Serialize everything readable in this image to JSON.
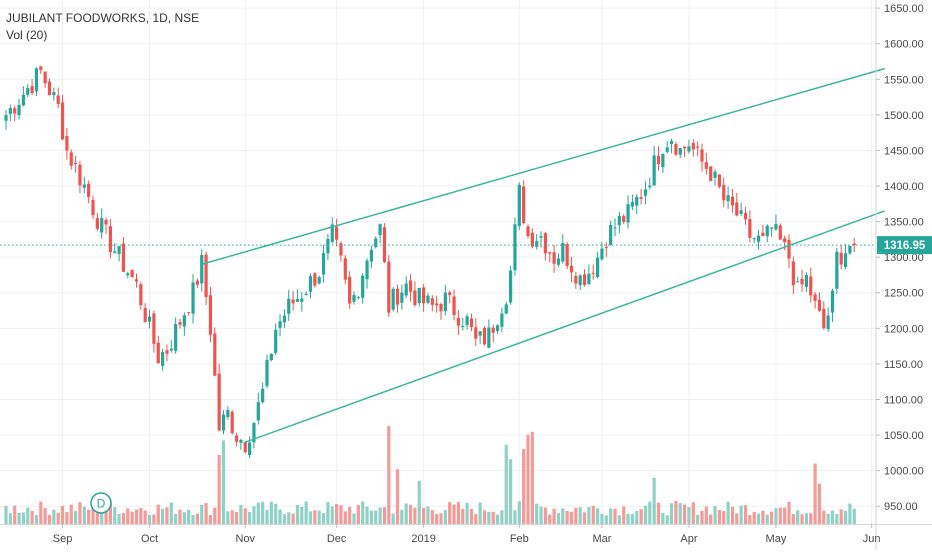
{
  "header": {
    "title": "JUBILANT FOODWORKS, 1D, NSE",
    "volume_label": "Vol (20)"
  },
  "price_label": "1316.95",
  "dividend_marker": "D",
  "colors": {
    "up": "#26a69a",
    "down": "#ef5350",
    "up_volume": "#8fd0c7",
    "down_volume": "#f49a98",
    "channel": "#3cb59f",
    "last_price_line": "#26a69a",
    "grid": "#eef0f3",
    "axis_text": "#4a4a4a"
  },
  "chart_data": {
    "type": "candlestick",
    "title": "JUBILANT FOODWORKS, 1D, NSE",
    "y_axis": {
      "min": 925,
      "max": 1660,
      "ticks": [
        "950.00",
        "1000.00",
        "1050.00",
        "1100.00",
        "1150.00",
        "1200.00",
        "1250.00",
        "1300.00",
        "1350.00",
        "1400.00",
        "1450.00",
        "1500.00",
        "1550.00",
        "1600.00",
        "1650.00"
      ]
    },
    "x_axis": {
      "ticks": [
        {
          "label": "Sep",
          "index": 13
        },
        {
          "label": "Oct",
          "index": 33
        },
        {
          "label": "Nov",
          "index": 55
        },
        {
          "label": "Dec",
          "index": 76
        },
        {
          "label": "2019",
          "index": 96
        },
        {
          "label": "Feb",
          "index": 118
        },
        {
          "label": "Mar",
          "index": 137
        },
        {
          "label": "Apr",
          "index": 157
        },
        {
          "label": "May",
          "index": 177
        },
        {
          "label": "Jun",
          "index": 199
        }
      ]
    },
    "last_price": 1316.95,
    "anchors": [
      [
        0,
        1500
      ],
      [
        4,
        1530
      ],
      [
        8,
        1560
      ],
      [
        12,
        1510
      ],
      [
        14,
        1450
      ],
      [
        18,
        1400
      ],
      [
        22,
        1340
      ],
      [
        26,
        1300
      ],
      [
        30,
        1260
      ],
      [
        33,
        1200
      ],
      [
        35,
        1160
      ],
      [
        37,
        1170
      ],
      [
        40,
        1210
      ],
      [
        43,
        1250
      ],
      [
        45,
        1290
      ],
      [
        47,
        1200
      ],
      [
        49,
        1060
      ],
      [
        51,
        1080
      ],
      [
        53,
        1050
      ],
      [
        55,
        1040
      ],
      [
        57,
        1070
      ],
      [
        59,
        1110
      ],
      [
        62,
        1200
      ],
      [
        65,
        1230
      ],
      [
        68,
        1250
      ],
      [
        72,
        1280
      ],
      [
        75,
        1330
      ],
      [
        77,
        1290
      ],
      [
        79,
        1230
      ],
      [
        81,
        1260
      ],
      [
        84,
        1320
      ],
      [
        86,
        1340
      ],
      [
        88,
        1230
      ],
      [
        90,
        1250
      ],
      [
        92,
        1260
      ],
      [
        95,
        1240
      ],
      [
        98,
        1230
      ],
      [
        101,
        1240
      ],
      [
        104,
        1220
      ],
      [
        106,
        1210
      ],
      [
        108,
        1180
      ],
      [
        111,
        1190
      ],
      [
        113,
        1220
      ],
      [
        115,
        1250
      ],
      [
        116,
        1280
      ],
      [
        118,
        1390
      ],
      [
        120,
        1330
      ],
      [
        123,
        1330
      ],
      [
        126,
        1300
      ],
      [
        128,
        1310
      ],
      [
        130,
        1290
      ],
      [
        132,
        1270
      ],
      [
        134,
        1280
      ],
      [
        136,
        1300
      ],
      [
        138,
        1330
      ],
      [
        141,
        1350
      ],
      [
        143,
        1360
      ],
      [
        145,
        1380
      ],
      [
        147,
        1400
      ],
      [
        149,
        1430
      ],
      [
        151,
        1460
      ],
      [
        153,
        1470
      ],
      [
        155,
        1450
      ],
      [
        157,
        1460
      ],
      [
        159,
        1440
      ],
      [
        162,
        1420
      ],
      [
        165,
        1380
      ],
      [
        168,
        1360
      ],
      [
        171,
        1330
      ],
      [
        174,
        1320
      ],
      [
        176,
        1340
      ],
      [
        178,
        1320
      ],
      [
        180,
        1300
      ],
      [
        182,
        1250
      ],
      [
        184,
        1270
      ],
      [
        186,
        1230
      ],
      [
        188,
        1200
      ],
      [
        190,
        1240
      ],
      [
        191,
        1300
      ],
      [
        193,
        1310
      ],
      [
        194,
        1317
      ]
    ],
    "volume_axis_max": 100,
    "volume_spikes": [
      {
        "index": 49,
        "value": 48
      },
      {
        "index": 50,
        "value": 58
      },
      {
        "index": 88,
        "value": 68
      },
      {
        "index": 90,
        "value": 38
      },
      {
        "index": 95,
        "value": 30
      },
      {
        "index": 115,
        "value": 55
      },
      {
        "index": 116,
        "value": 45
      },
      {
        "index": 119,
        "value": 52
      },
      {
        "index": 120,
        "value": 62
      },
      {
        "index": 121,
        "value": 64
      },
      {
        "index": 149,
        "value": 32
      },
      {
        "index": 186,
        "value": 42
      },
      {
        "index": 187,
        "value": 28
      }
    ],
    "trendlines": [
      {
        "name": "upper channel",
        "from": {
          "index": 45,
          "price": 1290
        },
        "to": {
          "index": 202,
          "price": 1565
        }
      },
      {
        "name": "lower channel",
        "from": {
          "index": 55,
          "price": 1040
        },
        "to": {
          "index": 202,
          "price": 1365
        }
      }
    ],
    "grid": true,
    "legend": "top-left"
  }
}
